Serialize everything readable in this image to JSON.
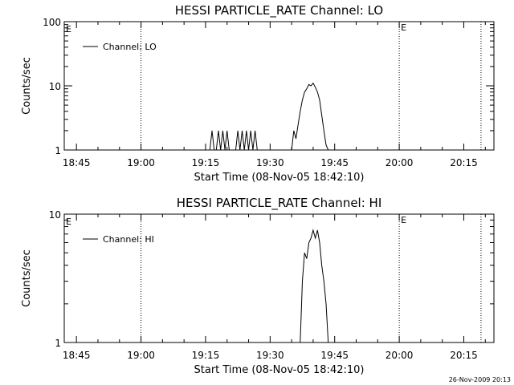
{
  "footer": {
    "timestamp": "26-Nov-2009 20:13"
  },
  "chart_data": [
    {
      "type": "line",
      "title": "HESSI PARTICLE_RATE Channel: LO",
      "xlabel": "Start Time (08-Nov-05 18:42:10)",
      "ylabel": "Counts/sec",
      "y_scale": "log",
      "ylim": [
        1,
        100
      ],
      "xlim": [
        "18:42:10",
        "20:22:00"
      ],
      "x_ticks": [
        "18:45",
        "19:00",
        "19:15",
        "19:30",
        "19:45",
        "20:00",
        "20:15"
      ],
      "y_ticks": [
        {
          "value": 1,
          "label": "1"
        },
        {
          "value": 10,
          "label": "10"
        },
        {
          "value": 100,
          "label": "100"
        }
      ],
      "grid": false,
      "legend_position": "top-left",
      "vertical_markers": [
        {
          "time": "19:00",
          "label": ""
        },
        {
          "time": "20:00",
          "label": "E"
        },
        {
          "time": "20:19",
          "label": ""
        }
      ],
      "corner_label": "E",
      "series": [
        {
          "name": "Channel: LO",
          "x": [
            "19:16:00",
            "19:16:30",
            "19:17:00",
            "19:17:30",
            "19:18:00",
            "19:18:30",
            "19:19:00",
            "19:19:30",
            "19:20:00",
            "19:20:30",
            "19:21:00",
            "19:21:30",
            "19:22:00",
            "19:22:30",
            "19:23:00",
            "19:23:30",
            "19:24:00",
            "19:24:30",
            "19:25:00",
            "19:25:30",
            "19:26:00",
            "19:26:30",
            "19:27:00",
            "19:28:00",
            "19:29:00",
            "19:30:00",
            "19:31:00",
            "19:32:00",
            "19:33:00",
            "19:34:00",
            "19:35:00",
            "19:35:30",
            "19:36:00",
            "19:36:30",
            "19:37:00",
            "19:37:30",
            "19:38:00",
            "19:38:30",
            "19:39:00",
            "19:39:30",
            "19:40:00",
            "19:40:30",
            "19:41:00",
            "19:41:30",
            "19:42:00",
            "19:42:30",
            "19:43:00",
            "19:43:30"
          ],
          "values": [
            1,
            2,
            1,
            1,
            2,
            1,
            2,
            1,
            2,
            1,
            1,
            1,
            1,
            2,
            1,
            2,
            1,
            2,
            1,
            2,
            1,
            2,
            1,
            1,
            1,
            1,
            1,
            1,
            1,
            1,
            1,
            2,
            1.5,
            2.5,
            4,
            6,
            8,
            9,
            10.5,
            10,
            11,
            9.5,
            8,
            6,
            3.5,
            2,
            1.2,
            1
          ]
        }
      ]
    },
    {
      "type": "line",
      "title": "HESSI PARTICLE_RATE Channel: HI",
      "xlabel": "Start Time (08-Nov-05 18:42:10)",
      "ylabel": "Counts/sec",
      "y_scale": "log",
      "ylim": [
        1,
        10
      ],
      "xlim": [
        "18:42:10",
        "20:22:00"
      ],
      "x_ticks": [
        "18:45",
        "19:00",
        "19:15",
        "19:30",
        "19:45",
        "20:00",
        "20:15"
      ],
      "y_ticks": [
        {
          "value": 1,
          "label": "1"
        },
        {
          "value": 10,
          "label": "10"
        }
      ],
      "grid": false,
      "legend_position": "top-left",
      "vertical_markers": [
        {
          "time": "19:00",
          "label": ""
        },
        {
          "time": "20:00",
          "label": "E"
        },
        {
          "time": "20:19",
          "label": ""
        }
      ],
      "corner_label": "E",
      "series": [
        {
          "name": "Channel: HI",
          "x": [
            "19:37:00",
            "19:37:30",
            "19:38:00",
            "19:38:30",
            "19:39:00",
            "19:39:30",
            "19:40:00",
            "19:40:30",
            "19:41:00",
            "19:41:30",
            "19:42:00",
            "19:42:30",
            "19:43:00",
            "19:43:30"
          ],
          "values": [
            1,
            3,
            5,
            4.5,
            6,
            6.5,
            7.5,
            6.5,
            7.5,
            6,
            4,
            3,
            2,
            1
          ]
        }
      ]
    }
  ]
}
